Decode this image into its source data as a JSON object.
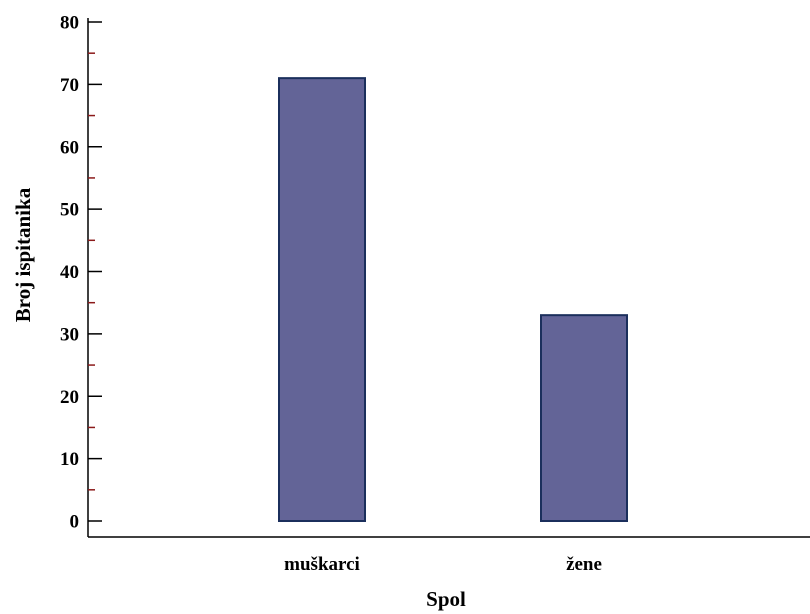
{
  "chart_data": {
    "type": "bar",
    "categories": [
      "muškarci",
      "žene"
    ],
    "values": [
      71,
      33
    ],
    "xlabel": "Spol",
    "ylabel": "Broj ispitanika",
    "ylim": [
      0,
      80
    ],
    "yticks": [
      0,
      10,
      20,
      30,
      40,
      50,
      60,
      70,
      80
    ],
    "grid": false,
    "legend": "none",
    "colors": {
      "bar_fill": "#636497",
      "bar_stroke": "#1b2f5c",
      "axis": "#000000",
      "minor_tick": "#8b1a1a"
    }
  }
}
